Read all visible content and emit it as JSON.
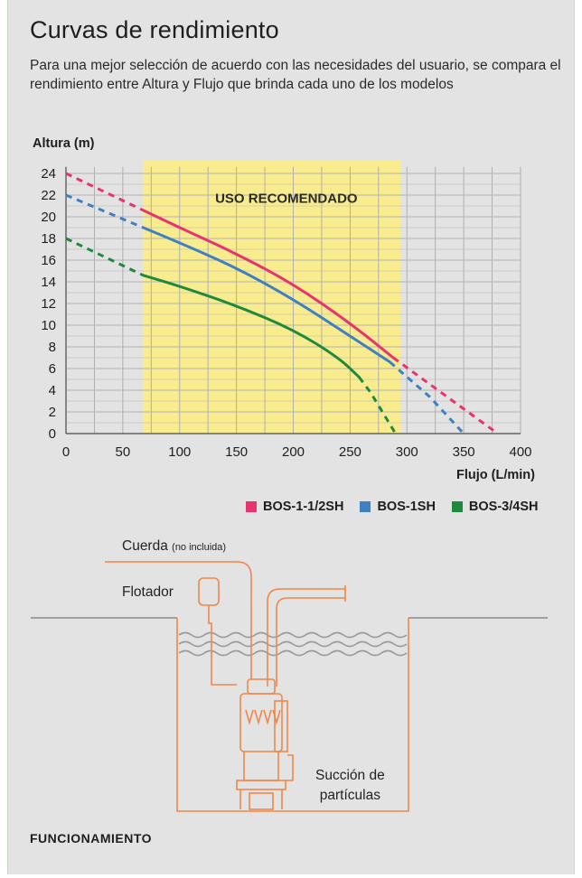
{
  "header": {
    "title": "Curvas de rendimiento",
    "subtitle": "Para una mejor selección de acuerdo con las necesidades del usuario, se compara el rendimiento entre Altura y Flujo que brinda cada uno de los modelos"
  },
  "chart_data": {
    "type": "line",
    "ylabel": "Altura (m)",
    "xlabel": "Flujo (L/min)",
    "xlim": [
      0,
      400
    ],
    "ylim": [
      0,
      24
    ],
    "x_ticks": [
      0,
      50,
      100,
      150,
      200,
      250,
      300,
      350,
      400
    ],
    "y_ticks": [
      0,
      2,
      4,
      6,
      8,
      10,
      12,
      14,
      16,
      18,
      20,
      22,
      24
    ],
    "grid": true,
    "recommended_zone": {
      "label": "USO RECOMENDADO",
      "x_start": 68,
      "x_end": 288,
      "y_end": 25,
      "color": "#f8ec8e"
    },
    "series": [
      {
        "name": "BOS-1-1/2SH",
        "color": "#e8336e",
        "dashed_start": [
          [
            0,
            24
          ],
          [
            68,
            20.6
          ]
        ],
        "solid": [
          [
            68,
            20.6
          ],
          [
            100,
            19.0
          ],
          [
            150,
            16.6
          ],
          [
            200,
            13.8
          ],
          [
            250,
            10.2
          ],
          [
            288,
            7.0
          ]
        ],
        "dashed_end": [
          [
            288,
            7.0
          ],
          [
            330,
            3.8
          ],
          [
            380,
            0
          ]
        ]
      },
      {
        "name": "BOS-1SH",
        "color": "#3f80c4",
        "dashed_start": [
          [
            0,
            22
          ],
          [
            68,
            19.0
          ]
        ],
        "solid": [
          [
            68,
            19.0
          ],
          [
            100,
            17.6
          ],
          [
            150,
            15.3
          ],
          [
            200,
            12.4
          ],
          [
            250,
            9.0
          ],
          [
            285,
            6.6
          ]
        ],
        "dashed_end": [
          [
            285,
            6.6
          ],
          [
            320,
            3.4
          ],
          [
            350,
            0
          ]
        ]
      },
      {
        "name": "BOS-3/4SH",
        "color": "#1f8a3e",
        "dashed_start": [
          [
            0,
            18
          ],
          [
            68,
            14.6
          ]
        ],
        "solid": [
          [
            68,
            14.6
          ],
          [
            100,
            13.6
          ],
          [
            150,
            11.8
          ],
          [
            200,
            9.6
          ],
          [
            240,
            7.0
          ],
          [
            258,
            5.2
          ]
        ],
        "dashed_end": [
          [
            258,
            5.2
          ],
          [
            268,
            3.8
          ],
          [
            290,
            0
          ]
        ]
      }
    ]
  },
  "diagram": {
    "labels": {
      "cuerda": "Cuerda",
      "cuerda_note": "(no incluida)",
      "flotador": "Flotador",
      "succion_1": "Succión de",
      "succion_2": "partículas"
    },
    "line_color": "#f0874a"
  },
  "footer": {
    "label": "FUNCIONAMIENTO"
  }
}
